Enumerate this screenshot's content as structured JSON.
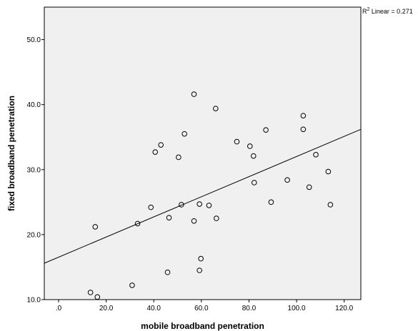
{
  "chart_data": {
    "type": "scatter",
    "xlabel": "mobile broadband penetration",
    "ylabel": "fixed broadband penetration",
    "xlim": [
      -6,
      127
    ],
    "ylim": [
      10,
      55
    ],
    "xticks": [
      0,
      20,
      40,
      60,
      80,
      100,
      120
    ],
    "xtick_labels": [
      ".0",
      "20.0",
      "40.0",
      "60.0",
      "80.0",
      "100.0",
      "120.0"
    ],
    "yticks": [
      10,
      20,
      30,
      40,
      50
    ],
    "ytick_labels": [
      "10.0",
      "20.0",
      "30.0",
      "40.0",
      "50.0"
    ],
    "grid": false,
    "fit_line": {
      "label": "R² Linear = 0.271",
      "x": [
        -6,
        127
      ],
      "y": [
        15.6,
        36.2
      ]
    },
    "points": [
      {
        "x": 13.4,
        "y": 11.1
      },
      {
        "x": 16.3,
        "y": 10.4
      },
      {
        "x": 15.4,
        "y": 21.2
      },
      {
        "x": 30.9,
        "y": 12.2
      },
      {
        "x": 33.2,
        "y": 21.7
      },
      {
        "x": 38.8,
        "y": 24.2
      },
      {
        "x": 40.6,
        "y": 32.7
      },
      {
        "x": 43.0,
        "y": 33.8
      },
      {
        "x": 45.8,
        "y": 14.2
      },
      {
        "x": 46.4,
        "y": 22.6
      },
      {
        "x": 50.4,
        "y": 31.9
      },
      {
        "x": 51.6,
        "y": 24.6
      },
      {
        "x": 52.9,
        "y": 35.5
      },
      {
        "x": 56.9,
        "y": 41.6
      },
      {
        "x": 56.9,
        "y": 22.1
      },
      {
        "x": 59.2,
        "y": 14.5
      },
      {
        "x": 59.2,
        "y": 24.7
      },
      {
        "x": 59.8,
        "y": 16.3
      },
      {
        "x": 63.2,
        "y": 24.5
      },
      {
        "x": 66.0,
        "y": 39.4
      },
      {
        "x": 66.3,
        "y": 22.5
      },
      {
        "x": 74.9,
        "y": 34.3
      },
      {
        "x": 80.4,
        "y": 33.6
      },
      {
        "x": 81.9,
        "y": 32.1
      },
      {
        "x": 82.2,
        "y": 28.0
      },
      {
        "x": 87.1,
        "y": 36.1
      },
      {
        "x": 89.3,
        "y": 25.0
      },
      {
        "x": 96.1,
        "y": 28.4
      },
      {
        "x": 102.8,
        "y": 38.3
      },
      {
        "x": 102.8,
        "y": 36.2
      },
      {
        "x": 105.3,
        "y": 27.3
      },
      {
        "x": 108.1,
        "y": 32.3
      },
      {
        "x": 113.3,
        "y": 29.7
      },
      {
        "x": 114.2,
        "y": 24.6
      }
    ]
  }
}
